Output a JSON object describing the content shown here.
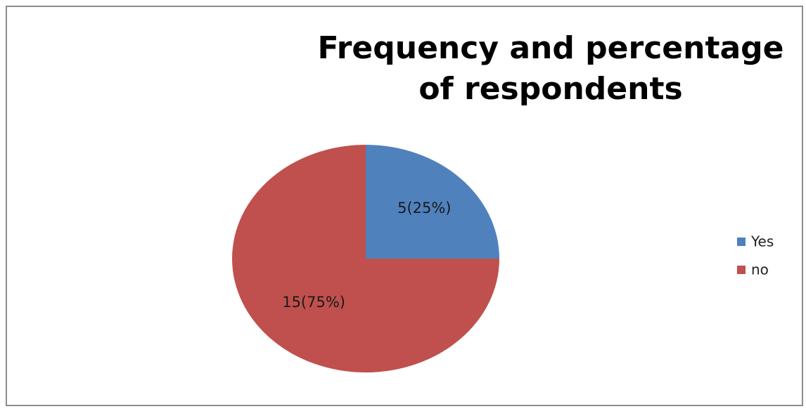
{
  "chart_data": {
    "type": "pie",
    "title": "Frequency and percentage of respondents",
    "categories": [
      "Yes",
      "no"
    ],
    "values": [
      5,
      15
    ],
    "percentages": [
      25,
      75
    ],
    "data_labels": [
      "5(25%)",
      "15(75%)"
    ],
    "colors": [
      "#4f81bd",
      "#c0504d"
    ],
    "legend": "right"
  }
}
